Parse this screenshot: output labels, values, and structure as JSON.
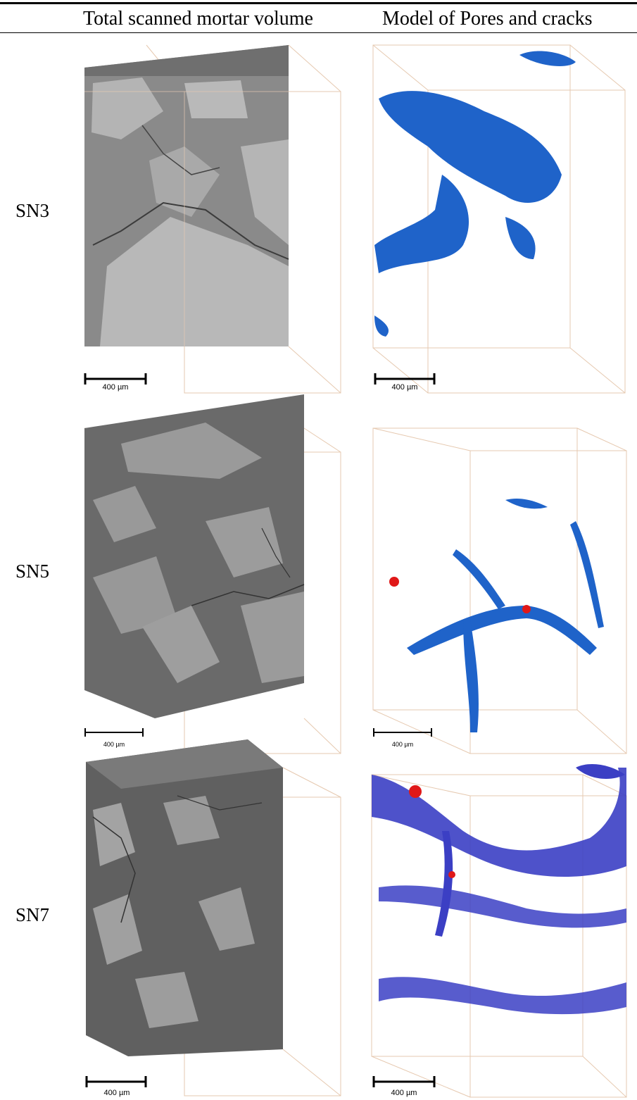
{
  "table": {
    "headers": [
      "Total scanned mortar volume",
      "Model of Pores and cracks"
    ],
    "rows": [
      {
        "label": "SN3",
        "scale_left": "400 µm",
        "scale_right": "400 µm"
      },
      {
        "label": "SN5",
        "scale_left": "400 µm",
        "scale_right": "400 µm"
      },
      {
        "label": "SN7",
        "scale_left": "400 µm",
        "scale_right": "400 µm"
      }
    ]
  },
  "colors": {
    "box_outline": "#e6c9b0",
    "mortar_dark": "#5f5f5f",
    "aggregate_light": "#b4b4b4",
    "pores_sn3_sn5": "#1f63c9",
    "pores_sn7": "#3b3fc4",
    "air_voids": "#e01818"
  }
}
